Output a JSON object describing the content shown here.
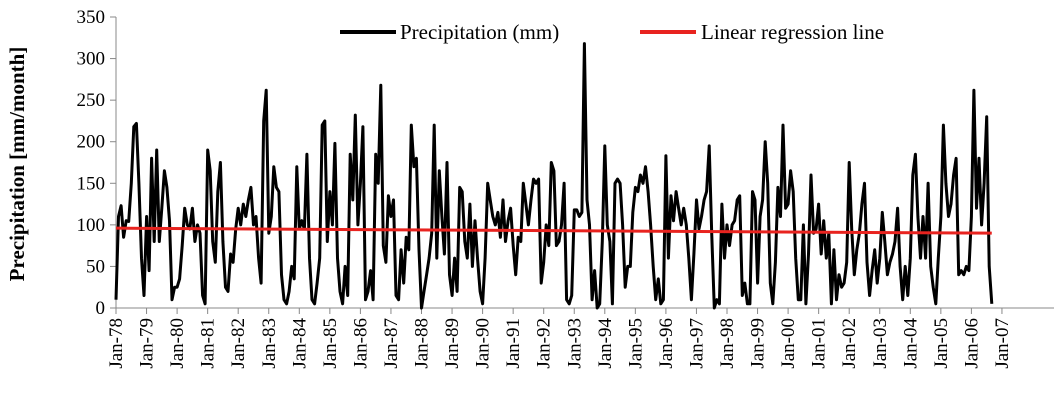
{
  "chart_data": {
    "type": "line",
    "title": "",
    "xlabel": "",
    "ylabel": "Precipitation  [mm/month]",
    "ylim": [
      0,
      350
    ],
    "yticks": [
      0,
      50,
      100,
      150,
      200,
      250,
      300,
      350
    ],
    "xticks": [
      "Jan-78",
      "Jan-79",
      "Jan-80",
      "Jan-81",
      "Jan-82",
      "Jan-83",
      "Jan-84",
      "Jan-85",
      "Jan-86",
      "Jan-87",
      "Jan-88",
      "Jan-89",
      "Jan-90",
      "Jan-91",
      "Jan-92",
      "Jan-93",
      "Jan-94",
      "Jan-95",
      "Jan-96",
      "Jan-97",
      "Jan-98",
      "Jan-99",
      "Jan-00",
      "Jan-01",
      "Jan-02",
      "Jan-03",
      "Jan-04",
      "Jan-05",
      "Jan-06",
      "Jan-07"
    ],
    "grid": false,
    "legend_position": "top",
    "series": [
      {
        "name": "Precipitation (mm)",
        "color": "#000000",
        "values": [
          10,
          110,
          123,
          85,
          105,
          104,
          150,
          218,
          222,
          150,
          60,
          15,
          110,
          45,
          180,
          80,
          190,
          80,
          120,
          165,
          145,
          105,
          10,
          25,
          25,
          35,
          75,
          120,
          100,
          95,
          120,
          80,
          100,
          90,
          15,
          5,
          190,
          165,
          80,
          55,
          140,
          175,
          80,
          25,
          20,
          65,
          55,
          95,
          120,
          100,
          125,
          110,
          130,
          145,
          100,
          110,
          60,
          30,
          225,
          262,
          90,
          110,
          170,
          145,
          140,
          40,
          10,
          5,
          20,
          50,
          35,
          170,
          95,
          105,
          95,
          185,
          60,
          10,
          5,
          30,
          60,
          220,
          225,
          80,
          140,
          100,
          198,
          60,
          20,
          5,
          50,
          15,
          185,
          130,
          232,
          100,
          150,
          218,
          10,
          20,
          45,
          10,
          185,
          150,
          268,
          75,
          55,
          135,
          110,
          130,
          15,
          10,
          70,
          30,
          85,
          70,
          220,
          170,
          180,
          70,
          0,
          20,
          40,
          60,
          90,
          220,
          60,
          165,
          110,
          65,
          175,
          40,
          15,
          60,
          20,
          145,
          140,
          80,
          60,
          125,
          50,
          105,
          60,
          20,
          5,
          60,
          150,
          130,
          110,
          100,
          115,
          85,
          130,
          80,
          105,
          120,
          75,
          40,
          85,
          80,
          150,
          125,
          100,
          130,
          155,
          150,
          155,
          30,
          55,
          100,
          75,
          175,
          165,
          75,
          80,
          100,
          150,
          10,
          5,
          15,
          118,
          118,
          110,
          115,
          318,
          130,
          100,
          10,
          45,
          0,
          5,
          80,
          195,
          100,
          80,
          5,
          150,
          155,
          150,
          100,
          25,
          50,
          50,
          115,
          145,
          140,
          160,
          150,
          170,
          140,
          100,
          50,
          10,
          35,
          5,
          10,
          183,
          60,
          135,
          105,
          140,
          120,
          100,
          120,
          100,
          60,
          10,
          65,
          130,
          95,
          110,
          130,
          140,
          195,
          90,
          0,
          10,
          5,
          125,
          60,
          100,
          75,
          100,
          105,
          130,
          135,
          15,
          30,
          5,
          5,
          140,
          130,
          30,
          110,
          130,
          200,
          150,
          30,
          5,
          55,
          145,
          110,
          220,
          120,
          125,
          165,
          140,
          60,
          10,
          10,
          100,
          5,
          65,
          160,
          90,
          95,
          125,
          65,
          105,
          60,
          90,
          5,
          70,
          10,
          40,
          25,
          30,
          55,
          175,
          95,
          40,
          70,
          90,
          125,
          150,
          55,
          15,
          45,
          70,
          30,
          60,
          115,
          80,
          40,
          55,
          65,
          80,
          120,
          50,
          10,
          50,
          15,
          60,
          160,
          185,
          110,
          60,
          110,
          60,
          150,
          50,
          25,
          5,
          60,
          110,
          220,
          150,
          110,
          125,
          160,
          180,
          40,
          45,
          40,
          50,
          45,
          110,
          262,
          120,
          180,
          100,
          150,
          230,
          50,
          5
        ]
      },
      {
        "name": "Linear regression line",
        "color": "#e8231f",
        "values": [
          96,
          90
        ]
      }
    ]
  }
}
